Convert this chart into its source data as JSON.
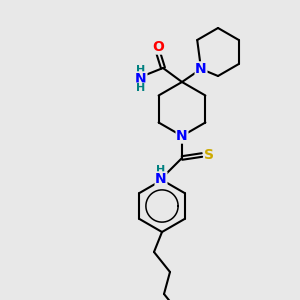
{
  "background_color": "#e8e8e8",
  "bond_color": "#000000",
  "bond_width": 1.5,
  "atom_colors": {
    "N": "#0000ff",
    "O": "#ff0000",
    "S": "#ccaa00",
    "C": "#000000",
    "H": "#008080"
  },
  "font_size_atom": 10,
  "font_size_small": 9,
  "font_size_nh2": 9
}
